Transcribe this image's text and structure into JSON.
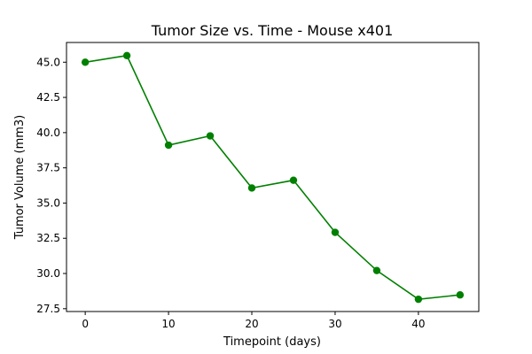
{
  "chart_data": {
    "type": "line",
    "title": "Tumor Size vs. Time - Mouse x401",
    "xlabel": "Timepoint (days)",
    "ylabel": "Tumor Volume (mm3)",
    "x": [
      0,
      5,
      10,
      15,
      20,
      25,
      30,
      35,
      40,
      45
    ],
    "y": [
      45.0,
      45.47,
      39.11,
      39.77,
      36.07,
      36.62,
      32.92,
      30.21,
      28.17,
      28.48
    ],
    "xlim": [
      -2.25,
      47.25
    ],
    "ylim": [
      27.3,
      46.4
    ],
    "xticks": [
      0,
      10,
      20,
      30,
      40
    ],
    "xtick_labels": [
      "0",
      "10",
      "20",
      "30",
      "40"
    ],
    "yticks": [
      27.5,
      30.0,
      32.5,
      35.0,
      37.5,
      40.0,
      42.5,
      45.0
    ],
    "ytick_labels": [
      "27.5",
      "30.0",
      "32.5",
      "35.0",
      "37.5",
      "40.0",
      "42.5",
      "45.0"
    ],
    "grid": false,
    "marker": "circle",
    "color": "#008000"
  }
}
